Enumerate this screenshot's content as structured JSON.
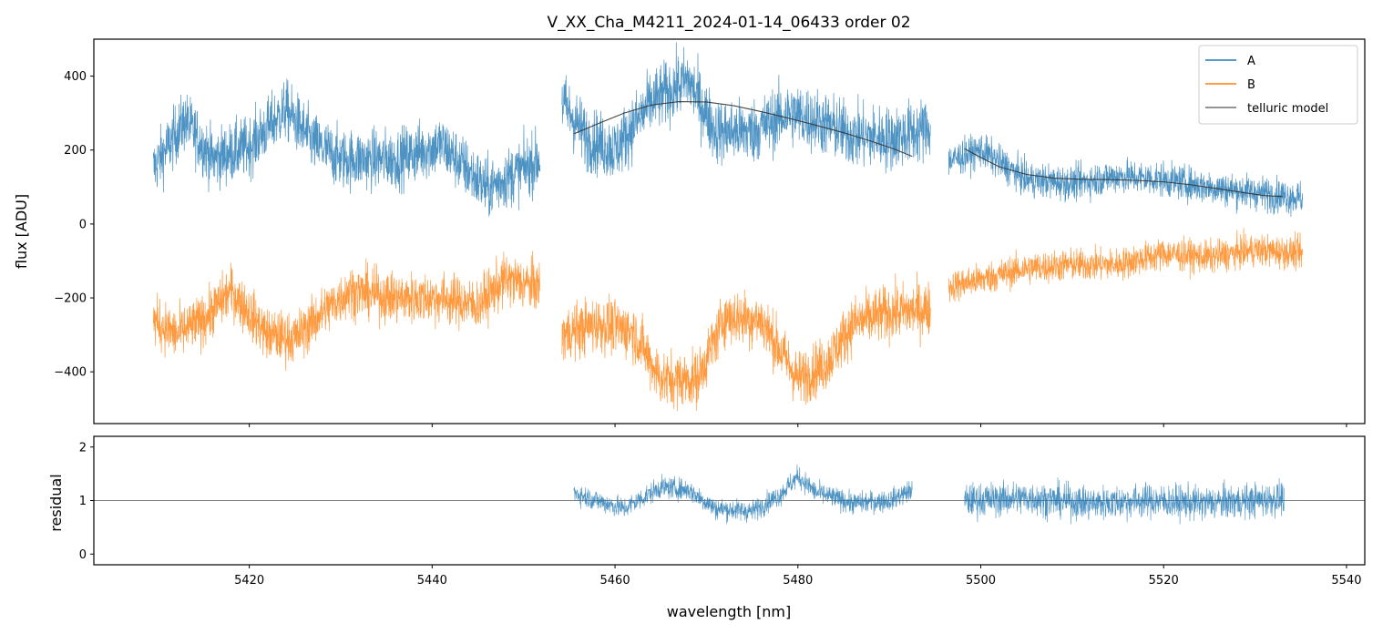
{
  "chart_data": [
    {
      "type": "line",
      "title": "V_XX_Cha_M4211_2024-01-14_06433  order 02",
      "xlabel": "",
      "ylabel": "flux [ADU]",
      "xlim": [
        5403,
        5542
      ],
      "ylim": [
        -540,
        500
      ],
      "yticks": [
        400,
        200,
        0,
        -200,
        -400
      ],
      "ytick_labels": [
        "400",
        "200",
        "0",
        "−200",
        "−400"
      ],
      "xticks": [
        5420,
        5440,
        5460,
        5480,
        5500,
        5520,
        5540
      ],
      "legend": {
        "position": "top-right",
        "entries": [
          "A",
          "B",
          "telluric model"
        ]
      },
      "series": [
        {
          "name": "A",
          "color": "#1f77b4",
          "segments": [
            {
              "x_range": [
                5409.5,
                5451.8
              ],
              "trend": [
                [
                  5409.5,
                  150
                ],
                [
                  5413,
                  280
                ],
                [
                  5416,
                  175
                ],
                [
                  5420,
                  210
                ],
                [
                  5424,
                  310
                ],
                [
                  5427,
                  220
                ],
                [
                  5430,
                  175
                ],
                [
                  5436,
                  175
                ],
                [
                  5441,
                  215
                ],
                [
                  5446,
                  95
                ],
                [
                  5451.8,
                  175
                ]
              ],
              "noise": 140
            },
            {
              "x_range": [
                5454.2,
                5494.5
              ],
              "trend": [
                [
                  5454.2,
                  330
                ],
                [
                  5457,
                  230
                ],
                [
                  5460,
                  200
                ],
                [
                  5464,
                  330
                ],
                [
                  5468,
                  390
                ],
                [
                  5471,
                  250
                ],
                [
                  5475,
                  250
                ],
                [
                  5479,
                  300
                ],
                [
                  5482,
                  280
                ],
                [
                  5486,
                  240
                ],
                [
                  5490,
                  230
                ],
                [
                  5494.5,
                  260
                ]
              ],
              "noise": 150
            },
            {
              "x_range": [
                5496.5,
                5535.2
              ],
              "trend": [
                [
                  5496.5,
                  170
                ],
                [
                  5500,
                  200
                ],
                [
                  5505,
                  120
                ],
                [
                  5510,
                  110
                ],
                [
                  5515,
                  130
                ],
                [
                  5520,
                  120
                ],
                [
                  5525,
                  100
                ],
                [
                  5530,
                  85
                ],
                [
                  5535.2,
                  70
                ]
              ],
              "noise": 80
            }
          ]
        },
        {
          "name": "B",
          "color": "#ff7f0e",
          "segments": [
            {
              "x_range": [
                5409.5,
                5451.8
              ],
              "trend": [
                [
                  5409.5,
                  -260
                ],
                [
                  5412,
                  -300
                ],
                [
                  5415,
                  -260
                ],
                [
                  5418,
                  -180
                ],
                [
                  5422,
                  -300
                ],
                [
                  5425,
                  -310
                ],
                [
                  5428,
                  -240
                ],
                [
                  5431,
                  -180
                ],
                [
                  5436,
                  -200
                ],
                [
                  5441,
                  -200
                ],
                [
                  5445,
                  -220
                ],
                [
                  5448,
                  -150
                ],
                [
                  5451.8,
                  -170
                ]
              ],
              "noise": 120
            },
            {
              "x_range": [
                5454.2,
                5494.5
              ],
              "trend": [
                [
                  5454.2,
                  -300
                ],
                [
                  5458,
                  -270
                ],
                [
                  5462,
                  -290
                ],
                [
                  5465,
                  -420
                ],
                [
                  5469,
                  -420
                ],
                [
                  5472,
                  -250
                ],
                [
                  5476,
                  -260
                ],
                [
                  5480,
                  -420
                ],
                [
                  5483,
                  -380
                ],
                [
                  5486,
                  -270
                ],
                [
                  5490,
                  -240
                ],
                [
                  5494.5,
                  -230
                ]
              ],
              "noise": 130
            },
            {
              "x_range": [
                5496.5,
                5535.2
              ],
              "trend": [
                [
                  5496.5,
                  -170
                ],
                [
                  5500,
                  -150
                ],
                [
                  5505,
                  -120
                ],
                [
                  5510,
                  -110
                ],
                [
                  5515,
                  -110
                ],
                [
                  5520,
                  -80
                ],
                [
                  5525,
                  -90
                ],
                [
                  5530,
                  -70
                ],
                [
                  5535.2,
                  -80
                ]
              ],
              "noise": 75
            }
          ]
        },
        {
          "name": "telluric model",
          "color": "#333333",
          "points": [
            [
              5455.5,
              244
            ],
            [
              5458,
              270
            ],
            [
              5461,
              300
            ],
            [
              5464,
              322
            ],
            [
              5467,
              331
            ],
            [
              5470,
              330
            ],
            [
              5473,
              320
            ],
            [
              5476,
              304
            ],
            [
              5479,
              286
            ],
            [
              5482,
              267
            ],
            [
              5485,
              247
            ],
            [
              5488,
              224
            ],
            [
              5490.5,
              203
            ],
            [
              5492.5,
              183
            ],
            null,
            [
              5498.2,
              204
            ],
            [
              5500,
              180
            ],
            [
              5502,
              155
            ],
            [
              5505,
              134
            ],
            [
              5508,
              124
            ],
            [
              5511,
              121
            ],
            [
              5514,
              120
            ],
            [
              5517,
              118
            ],
            [
              5520,
              114
            ],
            [
              5523,
              106
            ],
            [
              5526,
              95
            ],
            [
              5529,
              84
            ],
            [
              5531,
              77
            ],
            [
              5533,
              74
            ]
          ]
        }
      ]
    },
    {
      "type": "line",
      "title": "",
      "xlabel": "wavelength [nm]",
      "ylabel": "residual",
      "xlim": [
        5403,
        5542
      ],
      "ylim": [
        -0.2,
        2.2
      ],
      "yticks": [
        2,
        1,
        0
      ],
      "ytick_labels": [
        "2",
        "1",
        "0"
      ],
      "xticks": [
        5420,
        5440,
        5460,
        5480,
        5500,
        5520,
        5540
      ],
      "xtick_labels": [
        "5420",
        "5440",
        "5460",
        "5480",
        "5500",
        "5520",
        "5540"
      ],
      "reference_line": 1,
      "series": [
        {
          "name": "A residual",
          "color": "#1f77b4",
          "segments": [
            {
              "x_range": [
                5455.5,
                5492.5
              ],
              "trend": [
                [
                  5455.5,
                  1.15
                ],
                [
                  5458,
                  1.0
                ],
                [
                  5461,
                  0.85
                ],
                [
                  5465,
                  1.25
                ],
                [
                  5468,
                  1.2
                ],
                [
                  5471,
                  0.85
                ],
                [
                  5475,
                  0.8
                ],
                [
                  5478,
                  1.1
                ],
                [
                  5480,
                  1.45
                ],
                [
                  5482,
                  1.15
                ],
                [
                  5486,
                  0.95
                ],
                [
                  5490,
                  1.0
                ],
                [
                  5492.5,
                  1.2
                ]
              ],
              "noise": 0.35
            },
            {
              "x_range": [
                5498.2,
                5533.2
              ],
              "trend": [
                [
                  5498.2,
                  1.0
                ],
                [
                  5505,
                  1.05
                ],
                [
                  5512,
                  0.95
                ],
                [
                  5518,
                  1.0
                ],
                [
                  5524,
                  0.95
                ],
                [
                  5530,
                  1.0
                ],
                [
                  5533.2,
                  1.05
                ]
              ],
              "noise": 0.55
            }
          ]
        }
      ]
    }
  ]
}
